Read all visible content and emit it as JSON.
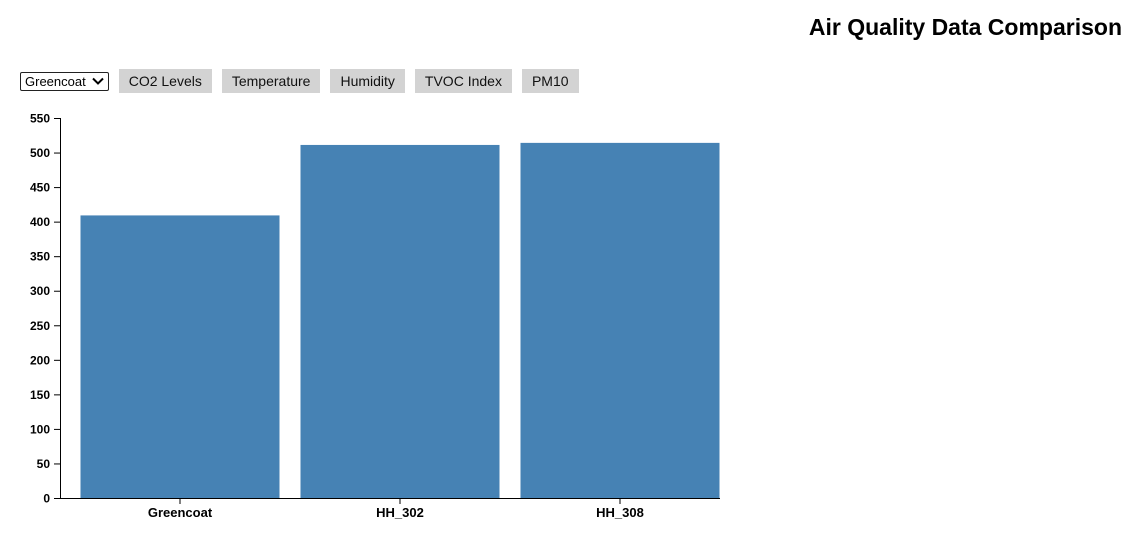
{
  "header": {
    "title": "Air Quality Data Comparison"
  },
  "controls": {
    "site_select": {
      "selected": "Greencoat"
    },
    "buttons": [
      {
        "label": "CO2 Levels",
        "name": "co2-levels-button"
      },
      {
        "label": "Temperature",
        "name": "temperature-button"
      },
      {
        "label": "Humidity",
        "name": "humidity-button"
      },
      {
        "label": "TVOC Index",
        "name": "tvoc-index-button"
      },
      {
        "label": "PM10",
        "name": "pm10-button"
      }
    ]
  },
  "chart_data": {
    "type": "bar",
    "categories": [
      "Greencoat",
      "HH_302",
      "HH_308"
    ],
    "values": [
      409,
      511,
      514
    ],
    "title": "",
    "xlabel": "",
    "ylabel": "",
    "ylim": [
      0,
      550
    ],
    "yticks": [
      0,
      50,
      100,
      150,
      200,
      250,
      300,
      350,
      400,
      450,
      500,
      550
    ],
    "bar_color": "#4682b4",
    "grid": false
  }
}
